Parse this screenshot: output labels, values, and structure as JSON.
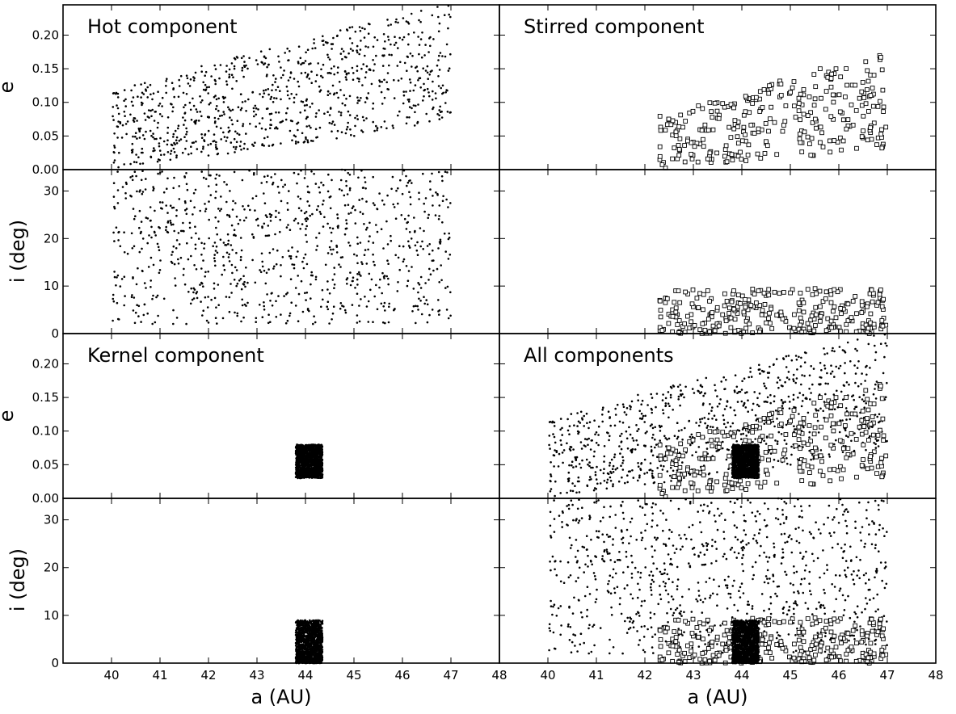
{
  "chart_data": {
    "type": "scatter",
    "grid": false,
    "xlabel": "a (AU)",
    "xlim": [
      39,
      48
    ],
    "x_ticks": [
      "40",
      "41",
      "42",
      "43",
      "44",
      "45",
      "46",
      "47",
      "48"
    ],
    "e_axis": {
      "label": "e",
      "ylim": [
        0,
        0.245
      ],
      "ticks": [
        "0.00",
        "0.05",
        "0.10",
        "0.15",
        "0.20"
      ]
    },
    "i_axis": {
      "label": "i (deg)",
      "ylim": [
        0,
        34.5
      ],
      "ticks": [
        "0",
        "10",
        "20",
        "30"
      ]
    },
    "components": [
      {
        "title": "Hot component",
        "marker": "dot",
        "count": 900,
        "a_range": [
          40,
          47
        ],
        "e_lower": [
          0.0,
          0.07
        ],
        "e_upper": [
          0.12,
          0.25
        ],
        "i_range": [
          2,
          34.5
        ]
      },
      {
        "title": "Stirred component",
        "marker": "open-square",
        "count": 300,
        "a_range": [
          42.3,
          47
        ],
        "e_lower": [
          0.0,
          0.03
        ],
        "e_upper": [
          0.08,
          0.18
        ],
        "i_range": [
          0,
          9.5
        ]
      },
      {
        "title": "Kernel component",
        "marker": "dot",
        "count": 1400,
        "a_range": [
          43.8,
          44.35
        ],
        "e_range": [
          0.03,
          0.08
        ],
        "i_range": [
          0,
          9
        ]
      },
      {
        "title": "All components",
        "marker": "combined"
      }
    ]
  }
}
